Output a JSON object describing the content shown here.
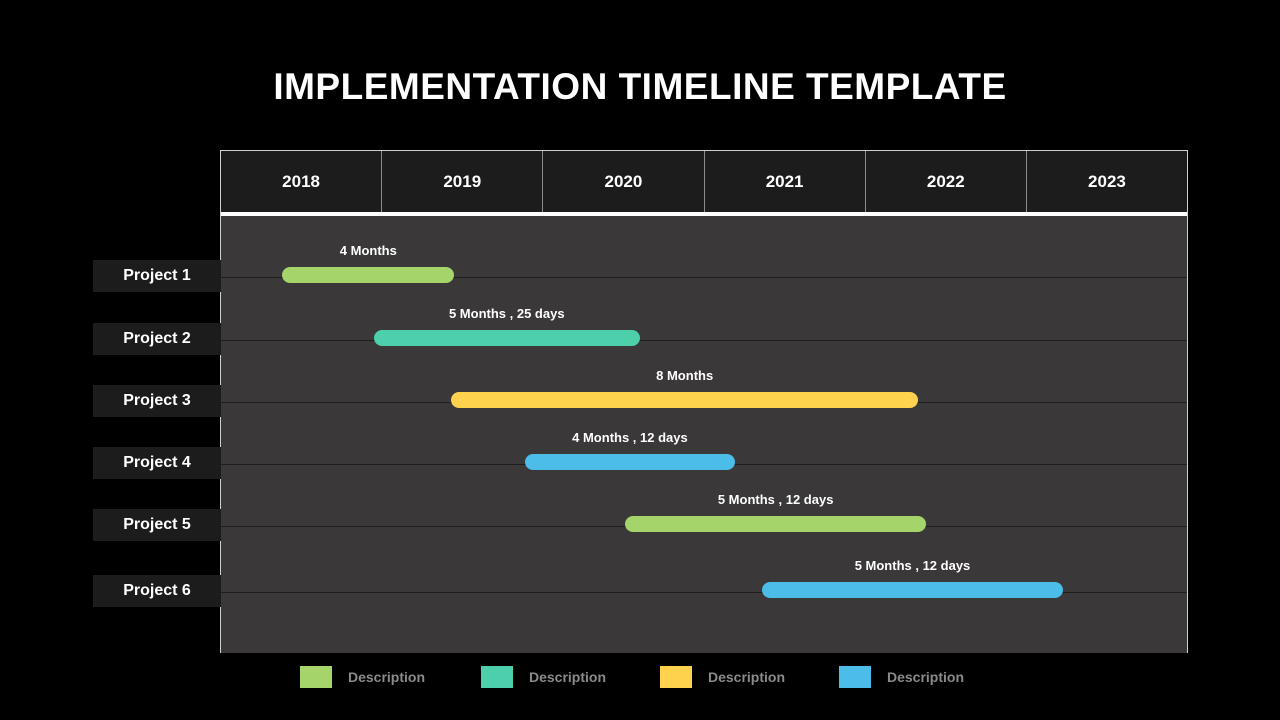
{
  "title": "IMPLEMENTATION TIMELINE TEMPLATE",
  "years": [
    "2018",
    "2019",
    "2020",
    "2021",
    "2022",
    "2023"
  ],
  "colors": {
    "green": "#a4d46a",
    "teal": "#4ccfaa",
    "yellow": "#ffd24e",
    "blue": "#4cbde8"
  },
  "projects": [
    {
      "name": "Project 1",
      "duration": "4 Months",
      "start_year": 2018.38,
      "end_year": 2019.45,
      "color": "#a4d46a"
    },
    {
      "name": "Project 2",
      "duration": "5 Months , 25 days",
      "start_year": 2018.95,
      "end_year": 2020.6,
      "color": "#4ccfaa"
    },
    {
      "name": "Project 3",
      "duration": "8 Months",
      "start_year": 2019.43,
      "end_year": 2022.33,
      "color": "#ffd24e"
    },
    {
      "name": "Project 4",
      "duration": "4 Months , 12 days",
      "start_year": 2019.89,
      "end_year": 2021.19,
      "color": "#4cbde8"
    },
    {
      "name": "Project 5",
      "duration": "5 Months , 12 days",
      "start_year": 2020.51,
      "end_year": 2022.38,
      "color": "#a4d46a"
    },
    {
      "name": "Project 6",
      "duration": "5 Months , 12 days",
      "start_year": 2021.36,
      "end_year": 2023.23,
      "color": "#4cbde8"
    }
  ],
  "legend": [
    {
      "label": "Description",
      "color": "#a4d46a"
    },
    {
      "label": "Description",
      "color": "#4ccfaa"
    },
    {
      "label": "Description",
      "color": "#ffd24e"
    },
    {
      "label": "Description",
      "color": "#4cbde8"
    }
  ]
}
